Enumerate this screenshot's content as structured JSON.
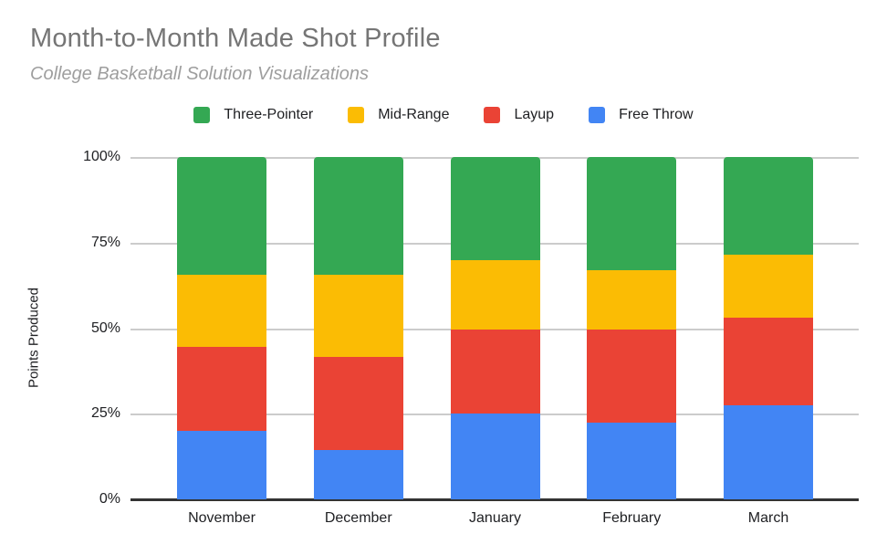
{
  "header": {
    "title": "Month-to-Month Made Shot Profile",
    "subtitle": "College Basketball Solution Visualizations"
  },
  "legend": {
    "items": [
      {
        "label": "Three-Pointer",
        "color": "#34A853",
        "icon": "green-swatch"
      },
      {
        "label": "Mid-Range",
        "color": "#FBBC04",
        "icon": "yellow-swatch"
      },
      {
        "label": "Layup",
        "color": "#EA4335",
        "icon": "red-swatch"
      },
      {
        "label": "Free Throw",
        "color": "#4285F4",
        "icon": "blue-swatch"
      }
    ]
  },
  "y_axis": {
    "label": "Points Produced",
    "ticks": [
      "0%",
      "25%",
      "50%",
      "75%",
      "100%"
    ]
  },
  "colors": {
    "three_pointer": "#34A853",
    "mid_range": "#FBBC04",
    "layup": "#EA4335",
    "free_throw": "#4285F4",
    "gridline": "#cccccc",
    "axis": "#333333",
    "title_gray": "#757575",
    "subtitle_gray": "#9e9e9e"
  },
  "chart_data": {
    "type": "bar",
    "subtype": "stacked-100-percent",
    "title": "Month-to-Month Made Shot Profile",
    "subtitle": "College Basketball Solution Visualizations",
    "xlabel": "",
    "ylabel": "Points Produced",
    "ylim": [
      0,
      100
    ],
    "yticks_percent": [
      0,
      25,
      50,
      75,
      100
    ],
    "grid": true,
    "legend_position": "top",
    "categories": [
      "November",
      "December",
      "January",
      "February",
      "March"
    ],
    "stack_order_bottom_to_top": [
      "Free Throw",
      "Layup",
      "Mid-Range",
      "Three-Pointer"
    ],
    "series": [
      {
        "name": "Free Throw",
        "color": "#4285F4",
        "values": [
          20,
          14.5,
          25,
          22.5,
          27.5
        ]
      },
      {
        "name": "Layup",
        "color": "#EA4335",
        "values": [
          24.5,
          27,
          24.5,
          27,
          25.5
        ]
      },
      {
        "name": "Mid-Range",
        "color": "#FBBC04",
        "values": [
          21,
          24,
          20.5,
          17.5,
          18.5
        ]
      },
      {
        "name": "Three-Pointer",
        "color": "#34A853",
        "values": [
          34.5,
          34.5,
          30,
          33,
          28.5
        ]
      }
    ]
  }
}
